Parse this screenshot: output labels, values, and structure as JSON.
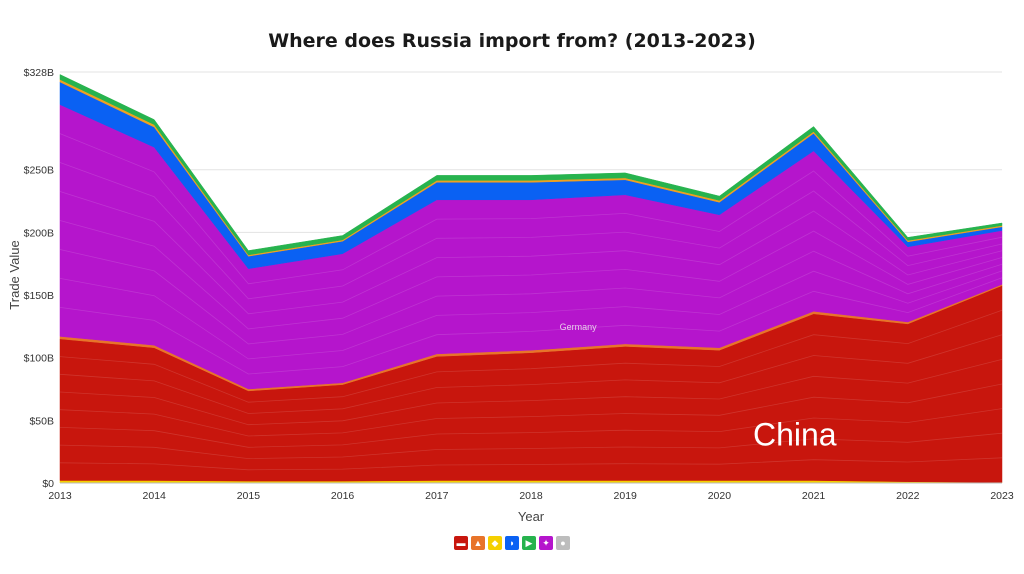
{
  "chart_data": {
    "type": "area",
    "stacked": true,
    "title": "Where does Russia import from? (2013-2023)",
    "xlabel": "Year",
    "ylabel": "Trade Value",
    "x": [
      "2013",
      "2014",
      "2015",
      "2016",
      "2017",
      "2018",
      "2019",
      "2020",
      "2021",
      "2022",
      "2023"
    ],
    "y_ticks": [
      {
        "value": 0,
        "label": "$0"
      },
      {
        "value": 50,
        "label": "$50B"
      },
      {
        "value": 100,
        "label": "$100B"
      },
      {
        "value": 150,
        "label": "$150B"
      },
      {
        "value": 200,
        "label": "$200B"
      },
      {
        "value": 250,
        "label": "$250B"
      },
      {
        "value": 328,
        "label": "$328B"
      }
    ],
    "ylim": [
      0,
      328
    ],
    "grid": true,
    "series": [
      {
        "color": "#f5d000",
        "values": [
          2,
          2,
          1.5,
          1.5,
          2,
          2,
          2,
          2,
          2,
          1,
          0.5
        ]
      },
      {
        "color": "#c8160d",
        "values": [
          113,
          106,
          72,
          77,
          99,
          102,
          107,
          104,
          133,
          126,
          157
        ]
      },
      {
        "color": "#e8742a",
        "values": [
          2,
          2,
          1.5,
          1.5,
          2,
          2,
          2,
          2,
          2,
          1.5,
          1
        ]
      },
      {
        "color": "#b515cc",
        "values": [
          185,
          158,
          96,
          103,
          123,
          120,
          119,
          106,
          128,
          60,
          43
        ]
      },
      {
        "color": "#0a61f3",
        "values": [
          18,
          16,
          10,
          10,
          14,
          14,
          12,
          10,
          14,
          4,
          3
        ]
      },
      {
        "color": "#f0a020",
        "values": [
          2,
          2,
          1,
          1,
          1.5,
          1.5,
          1.5,
          1.5,
          1.5,
          1,
          1
        ]
      },
      {
        "color": "#27b34e",
        "values": [
          4,
          4,
          3.5,
          3.5,
          4,
          4,
          4,
          3.5,
          4,
          2.5,
          2
        ]
      }
    ],
    "annotations": [
      {
        "text": "Germany",
        "x": "2018.5",
        "y": 122,
        "size": "small"
      },
      {
        "text": "China",
        "x": "2020.8",
        "y": 30,
        "size": "large"
      }
    ],
    "legend": {
      "placement": "bottom-center",
      "items": [
        {
          "icon": "americas-icon",
          "color": "#c8160d",
          "glyph": "▬"
        },
        {
          "icon": "asia-icon",
          "color": "#e8742a",
          "glyph": "▲"
        },
        {
          "icon": "africa-icon",
          "color": "#f5d000",
          "glyph": "◆"
        },
        {
          "icon": "middle-east-icon",
          "color": "#0a61f3",
          "glyph": "◗"
        },
        {
          "icon": "south-america-icon",
          "color": "#27b34e",
          "glyph": "▶"
        },
        {
          "icon": "europe-icon",
          "color": "#b515cc",
          "glyph": "✦"
        },
        {
          "icon": "other-icon",
          "color": "#bdbdbd",
          "glyph": "●"
        }
      ]
    }
  }
}
